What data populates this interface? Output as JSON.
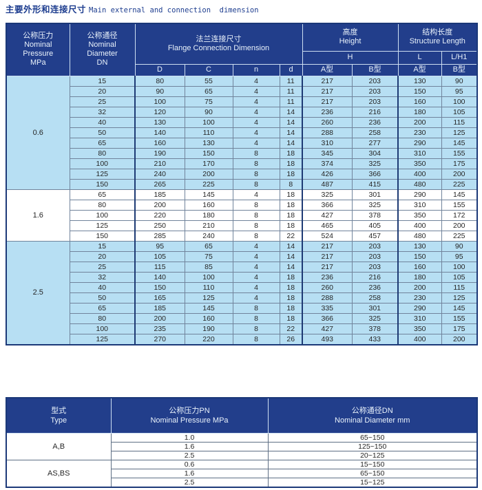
{
  "title": {
    "zh": "主要外形和连接尺寸",
    "en": "Main external and connection  dimension"
  },
  "colors": {
    "header_bg": "#223e8b",
    "row_blue": "#b7dff3",
    "row_white": "#ffffff",
    "border_dark": "#1b3878",
    "title_text": "#1d3d8f"
  },
  "dimension_table": {
    "header": {
      "pressure_lines": [
        "公称压力",
        "Nominal",
        "Pressure",
        "MPa"
      ],
      "diameter_lines": [
        "公称通径",
        "Nominal",
        "Diameter",
        "DN"
      ],
      "flange_lines": [
        "法兰连接尺寸",
        "Flange Connection Dimension"
      ],
      "flange_cols": [
        "D",
        "C",
        "n",
        "d"
      ],
      "height_lines": [
        "高度",
        "Height"
      ],
      "h_label": "H",
      "length_lines": [
        "结构长度",
        "Structure Length"
      ],
      "l_label": "L",
      "lh1_label": "L/H1",
      "variant_cols": [
        "A型",
        "B型",
        "A型",
        "B型"
      ]
    },
    "sections": [
      {
        "pressure": "0.6",
        "row_style": "blue",
        "rows": [
          [
            "15",
            "80",
            "55",
            "4",
            "11",
            "217",
            "203",
            "130",
            "90"
          ],
          [
            "20",
            "90",
            "65",
            "4",
            "11",
            "217",
            "203",
            "150",
            "95"
          ],
          [
            "25",
            "100",
            "75",
            "4",
            "11",
            "217",
            "203",
            "160",
            "100"
          ],
          [
            "32",
            "120",
            "90",
            "4",
            "14",
            "236",
            "216",
            "180",
            "105"
          ],
          [
            "40",
            "130",
            "100",
            "4",
            "14",
            "260",
            "236",
            "200",
            "115"
          ],
          [
            "50",
            "140",
            "110",
            "4",
            "14",
            "288",
            "258",
            "230",
            "125"
          ],
          [
            "65",
            "160",
            "130",
            "4",
            "14",
            "310",
            "277",
            "290",
            "145"
          ],
          [
            "80",
            "190",
            "150",
            "8",
            "18",
            "345",
            "304",
            "310",
            "155"
          ],
          [
            "100",
            "210",
            "170",
            "8",
            "18",
            "374",
            "325",
            "350",
            "175"
          ],
          [
            "125",
            "240",
            "200",
            "8",
            "18",
            "426",
            "366",
            "400",
            "200"
          ],
          [
            "150",
            "265",
            "225",
            "8",
            "8",
            "487",
            "415",
            "480",
            "225"
          ]
        ]
      },
      {
        "pressure": "1.6",
        "row_style": "white",
        "rows": [
          [
            "65",
            "185",
            "145",
            "4",
            "18",
            "325",
            "301",
            "290",
            "145"
          ],
          [
            "80",
            "200",
            "160",
            "8",
            "18",
            "366",
            "325",
            "310",
            "155"
          ],
          [
            "100",
            "220",
            "180",
            "8",
            "18",
            "427",
            "378",
            "350",
            "172"
          ],
          [
            "125",
            "250",
            "210",
            "8",
            "18",
            "465",
            "405",
            "400",
            "200"
          ],
          [
            "150",
            "285",
            "240",
            "8",
            "22",
            "524",
            "457",
            "480",
            "225"
          ]
        ]
      },
      {
        "pressure": "2.5",
        "row_style": "blue",
        "rows": [
          [
            "15",
            "95",
            "65",
            "4",
            "14",
            "217",
            "203",
            "130",
            "90"
          ],
          [
            "20",
            "105",
            "75",
            "4",
            "14",
            "217",
            "203",
            "150",
            "95"
          ],
          [
            "25",
            "115",
            "85",
            "4",
            "14",
            "217",
            "203",
            "160",
            "100"
          ],
          [
            "32",
            "140",
            "100",
            "4",
            "18",
            "236",
            "216",
            "180",
            "105"
          ],
          [
            "40",
            "150",
            "110",
            "4",
            "18",
            "260",
            "236",
            "200",
            "115"
          ],
          [
            "50",
            "165",
            "125",
            "4",
            "18",
            "288",
            "258",
            "230",
            "125"
          ],
          [
            "65",
            "185",
            "145",
            "8",
            "18",
            "335",
            "301",
            "290",
            "145"
          ],
          [
            "80",
            "200",
            "160",
            "8",
            "18",
            "366",
            "325",
            "310",
            "155"
          ],
          [
            "100",
            "235",
            "190",
            "8",
            "22",
            "427",
            "378",
            "350",
            "175"
          ],
          [
            "125",
            "270",
            "220",
            "8",
            "26",
            "493",
            "433",
            "400",
            "200"
          ]
        ]
      }
    ]
  },
  "type_table": {
    "header": {
      "type_lines": [
        "型式",
        "Type"
      ],
      "pn_lines": [
        "公称压力PN",
        "Nominal Pressure MPa"
      ],
      "dn_lines": [
        "公称通径DN",
        "Nominal Diameter mm"
      ]
    },
    "groups": [
      {
        "type": "A,B",
        "rows": [
          [
            "1.0",
            "65~150"
          ],
          [
            "1.6",
            "125~150"
          ],
          [
            "2.5",
            "20~125"
          ]
        ]
      },
      {
        "type": "AS,BS",
        "rows": [
          [
            "0.6",
            "15~150"
          ],
          [
            "1.6",
            "65~150"
          ],
          [
            "2.5",
            "15~125"
          ]
        ]
      }
    ]
  }
}
